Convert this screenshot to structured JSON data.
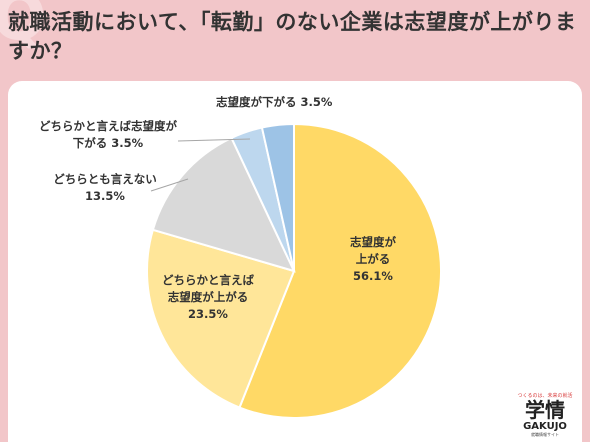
{
  "title": "就職活動において、「転勤」のない企業は志望度が上がりますか？",
  "logo": {
    "tagline": "つくるのは、未来の就活",
    "kanji": "学情",
    "brand": "GAKUJO",
    "sub": "就職情報サイト"
  },
  "chart_data": {
    "type": "pie",
    "title": "就職活動において、「転勤」のない企業は志望度が上がりますか？",
    "slices": [
      {
        "label": [
          "志望度が",
          "上がる"
        ],
        "value": 56.1,
        "value_text": "56.1%",
        "color": "#ffd966"
      },
      {
        "label": [
          "どちらかと言えば",
          "志望度が上がる"
        ],
        "value": 23.5,
        "value_text": "23.5%",
        "color": "#ffe699"
      },
      {
        "label": [
          "どちらとも言えない"
        ],
        "value": 13.5,
        "value_text": "13.5%",
        "color": "#d9d9d9"
      },
      {
        "label": [
          "どちらかと言えば志望度が",
          "下がる"
        ],
        "value": 3.5,
        "value_text": "3.5%",
        "color": "#bdd7ee"
      },
      {
        "label": [
          "志望度が下がる"
        ],
        "value": 3.5,
        "value_text": "3.5%",
        "color": "#9dc3e6"
      }
    ],
    "start_angle_deg": 0,
    "direction": "clockwise"
  }
}
